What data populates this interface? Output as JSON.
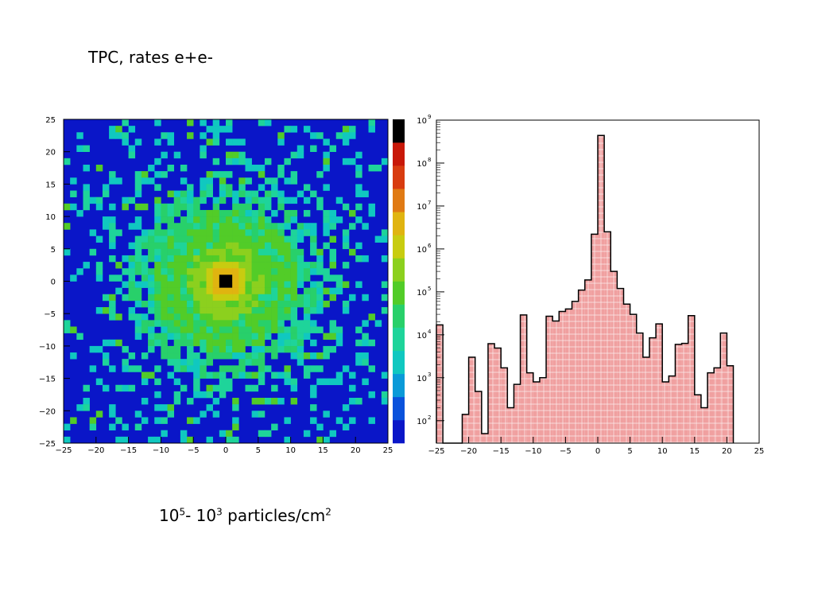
{
  "title": "TPC, rates e+e-",
  "caption": {
    "base1": "10",
    "exp1": "5",
    "sep": "- ",
    "base2": "10",
    "exp2": "3",
    "unit": " particles/cm",
    "unit_exp": "2"
  },
  "colors": {
    "background_blue": "#0a16c8",
    "hist_fill": "#f0a0a0",
    "hist_line": "#000000",
    "palette": [
      "#0a16c8",
      "#0a52dc",
      "#0a9ad8",
      "#10c8c0",
      "#1ed49a",
      "#28d06a",
      "#52cc28",
      "#8cd01e",
      "#c8cc10",
      "#e0b410",
      "#e07a14",
      "#d83c10",
      "#c81808",
      "#000000"
    ]
  },
  "chart_data": [
    {
      "type": "heatmap",
      "title": "",
      "xlabel": "",
      "ylabel": "",
      "xlim": [
        -25,
        25
      ],
      "ylim": [
        -25,
        25
      ],
      "x_ticks": [
        "−25",
        "−20",
        "−15",
        "−10",
        "−5",
        "0",
        "5",
        "10",
        "15",
        "20",
        "25"
      ],
      "y_ticks": [
        "25",
        "20",
        "15",
        "10",
        "5",
        "0",
        "−5",
        "−10",
        "−15",
        "−20",
        "−25"
      ],
      "bins": 50,
      "description_of_values": "Radially falling occupancy: black peak at the centre (x≈0, y≈0), yellow/green core within r≈5, green halo to r≈15, scattered cyan/green cells in outer region on blue background",
      "peak": {
        "x": 0,
        "y": 0,
        "level": "max"
      },
      "color_scale_steps": 14
    },
    {
      "type": "bar",
      "title": "",
      "xlabel": "",
      "ylabel": "",
      "xlim": [
        -25,
        25
      ],
      "yscale": "log",
      "ylim": [
        30,
        1000000000
      ],
      "x_ticks": [
        "−25",
        "−20",
        "−15",
        "−10",
        "−5",
        "0",
        "5",
        "10",
        "15",
        "20",
        "25"
      ],
      "y_ticks": [
        {
          "base": "10",
          "exp": "2",
          "value": 100
        },
        {
          "base": "10",
          "exp": "3",
          "value": 1000
        },
        {
          "base": "10",
          "exp": "4",
          "value": 10000
        },
        {
          "base": "10",
          "exp": "5",
          "value": 100000
        },
        {
          "base": "10",
          "exp": "6",
          "value": 1000000
        },
        {
          "base": "10",
          "exp": "7",
          "value": 10000000
        },
        {
          "base": "10",
          "exp": "8",
          "value": 100000000
        },
        {
          "base": "10",
          "exp": "9",
          "value": 1000000000
        }
      ],
      "bin_width": 1,
      "bins": [
        {
          "x0": -25,
          "value": 17000
        },
        {
          "x0": -24,
          "value": 0
        },
        {
          "x0": -23,
          "value": 0
        },
        {
          "x0": -22,
          "value": 0
        },
        {
          "x0": -21,
          "value": 140
        },
        {
          "x0": -20,
          "value": 3000
        },
        {
          "x0": -19,
          "value": 480
        },
        {
          "x0": -18,
          "value": 50
        },
        {
          "x0": -17,
          "value": 6200
        },
        {
          "x0": -16,
          "value": 4900
        },
        {
          "x0": -15,
          "value": 1700
        },
        {
          "x0": -14,
          "value": 200
        },
        {
          "x0": -13,
          "value": 700
        },
        {
          "x0": -12,
          "value": 29000
        },
        {
          "x0": -11,
          "value": 1300
        },
        {
          "x0": -10,
          "value": 800
        },
        {
          "x0": -9,
          "value": 1000
        },
        {
          "x0": -8,
          "value": 27000
        },
        {
          "x0": -7,
          "value": 21000
        },
        {
          "x0": -6,
          "value": 35000
        },
        {
          "x0": -5,
          "value": 40000
        },
        {
          "x0": -4,
          "value": 60000
        },
        {
          "x0": -3,
          "value": 110000
        },
        {
          "x0": -2,
          "value": 190000
        },
        {
          "x0": -1,
          "value": 2200000
        },
        {
          "x0": 0,
          "value": 440000000
        },
        {
          "x0": 1,
          "value": 2500000
        },
        {
          "x0": 2,
          "value": 300000
        },
        {
          "x0": 3,
          "value": 120000
        },
        {
          "x0": 4,
          "value": 52000
        },
        {
          "x0": 5,
          "value": 30000
        },
        {
          "x0": 6,
          "value": 11000
        },
        {
          "x0": 7,
          "value": 3000
        },
        {
          "x0": 8,
          "value": 8500
        },
        {
          "x0": 9,
          "value": 18000
        },
        {
          "x0": 10,
          "value": 800
        },
        {
          "x0": 11,
          "value": 1100
        },
        {
          "x0": 12,
          "value": 6000
        },
        {
          "x0": 13,
          "value": 6300
        },
        {
          "x0": 14,
          "value": 28000
        },
        {
          "x0": 15,
          "value": 400
        },
        {
          "x0": 16,
          "value": 200
        },
        {
          "x0": 17,
          "value": 1300
        },
        {
          "x0": 18,
          "value": 1700
        },
        {
          "x0": 19,
          "value": 11000
        },
        {
          "x0": 20,
          "value": 1900
        }
      ]
    }
  ]
}
